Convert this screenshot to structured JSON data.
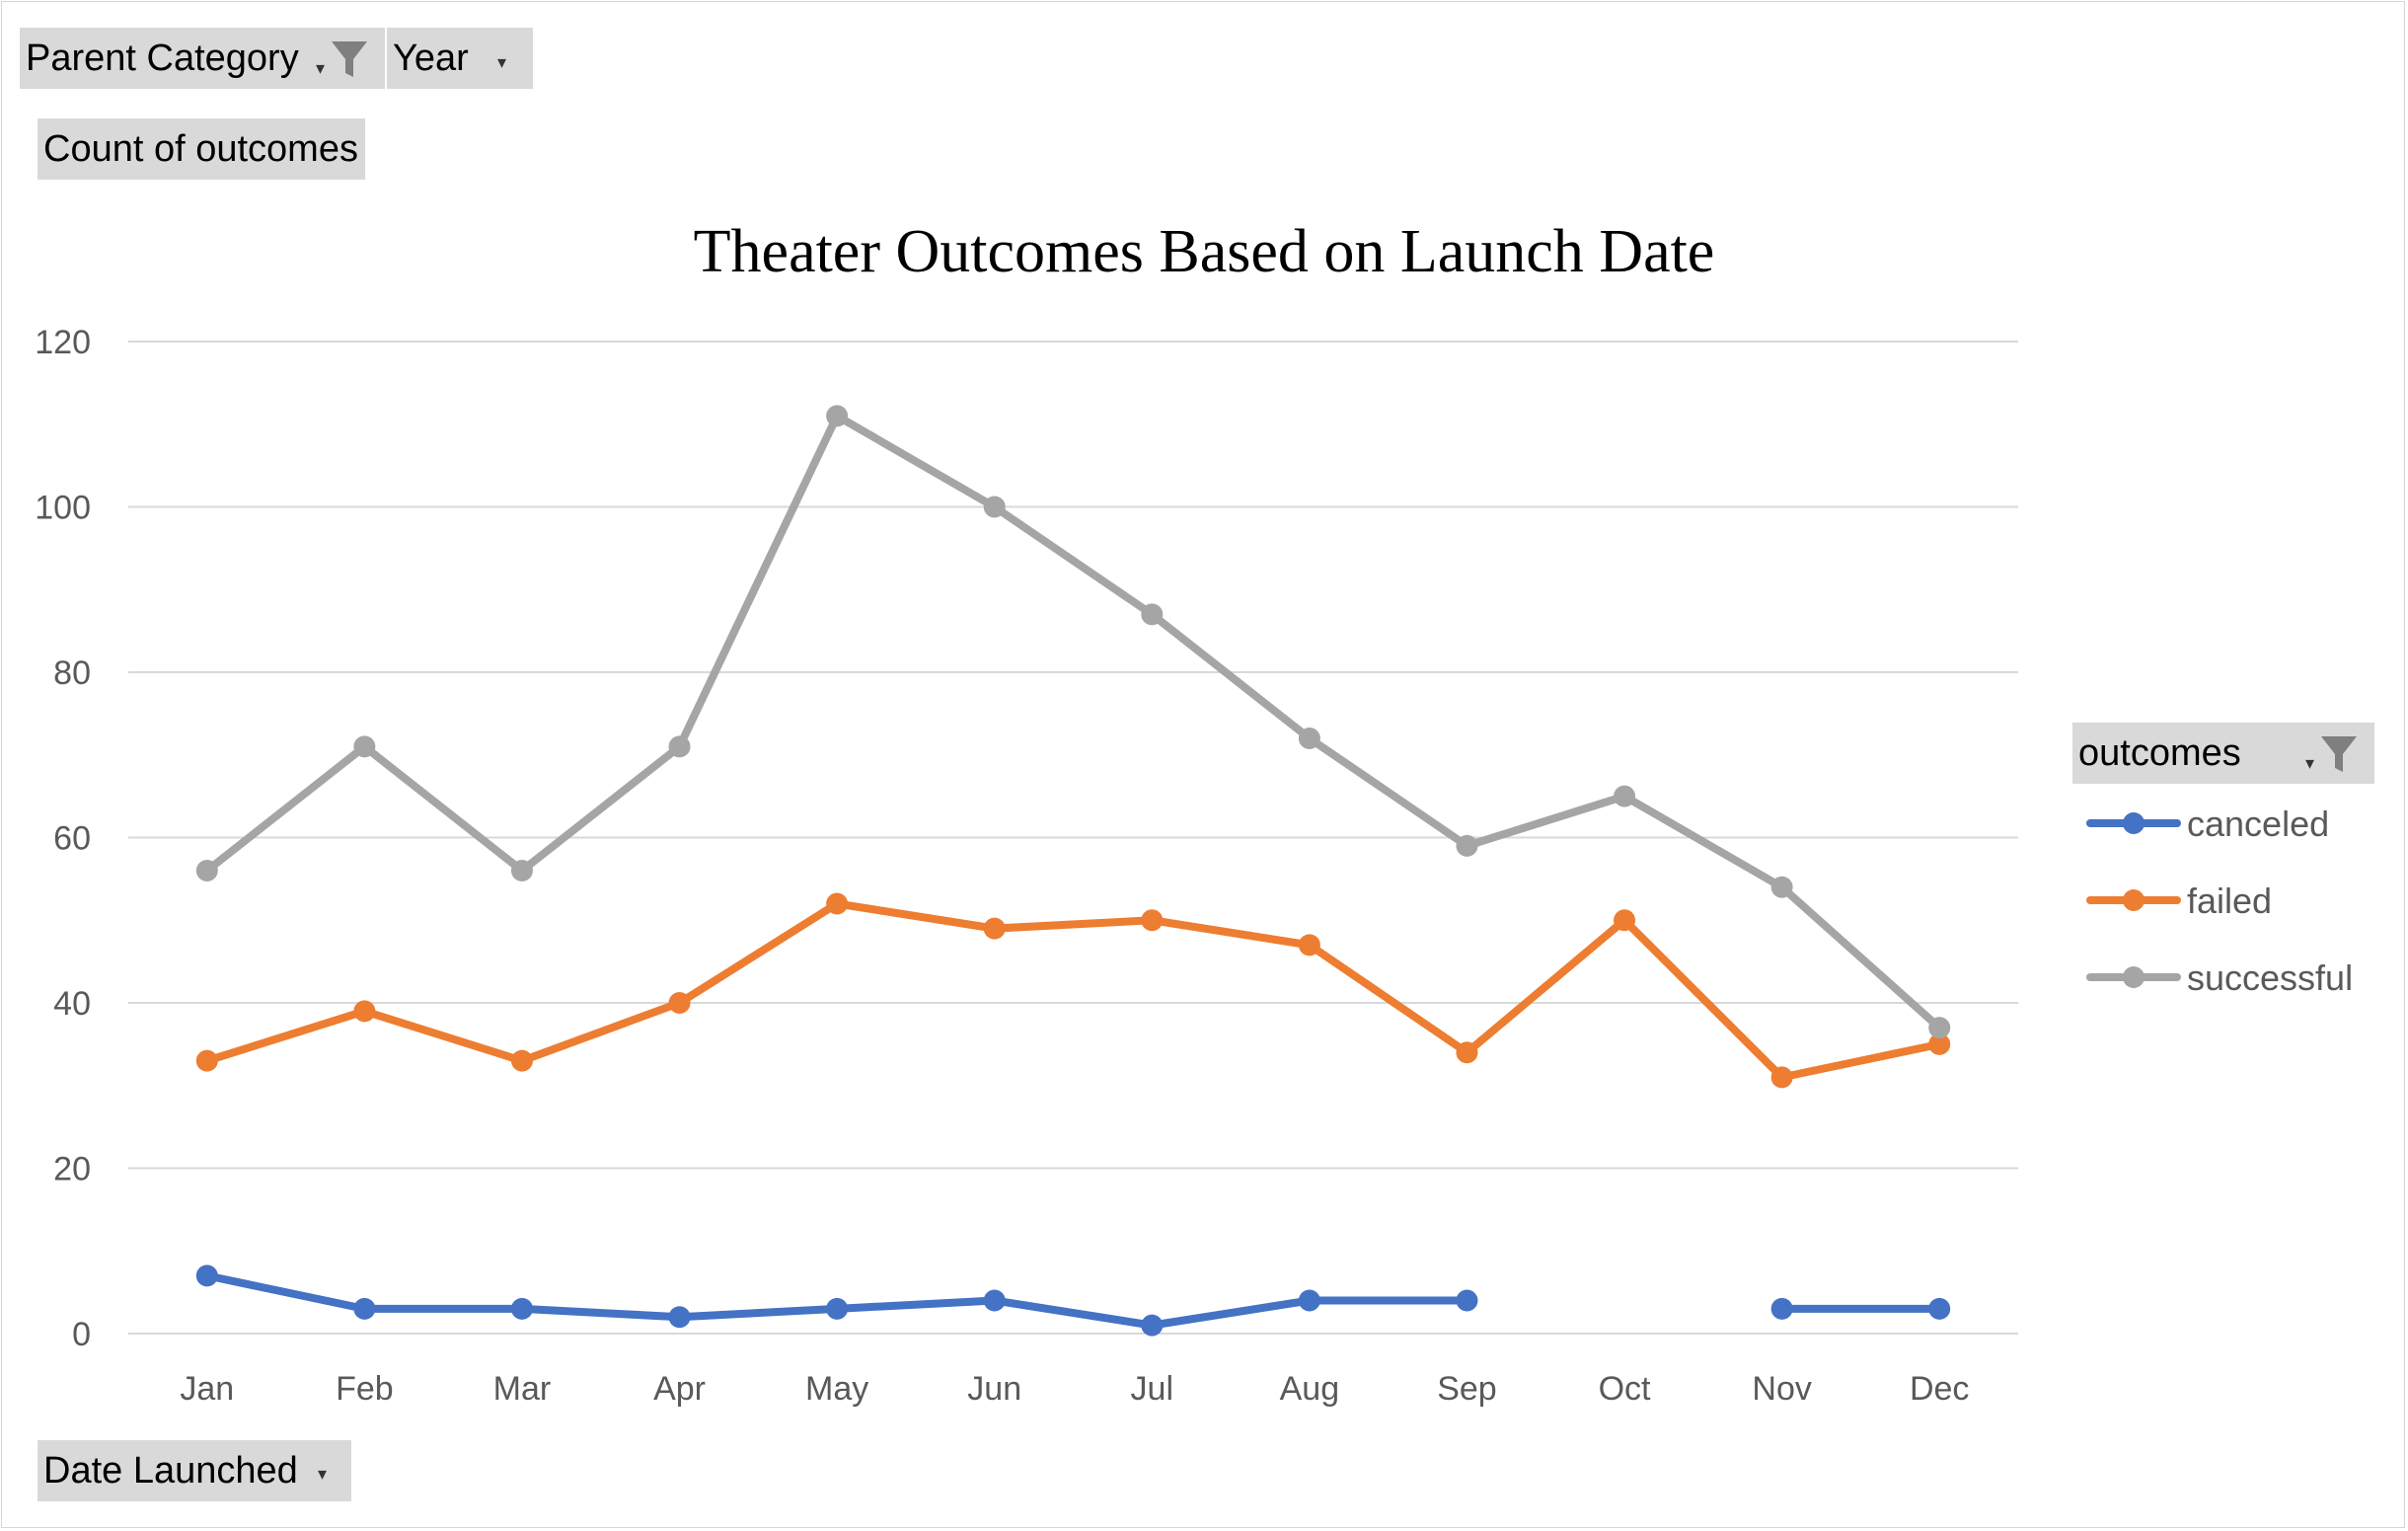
{
  "filters": {
    "parent_category_label": "Parent Category",
    "year_label": "Year"
  },
  "values_field": {
    "label": "Count of outcomes"
  },
  "axis_field": {
    "label": "Date Launched"
  },
  "legend": {
    "header": "outcomes",
    "placement": "right"
  },
  "icons": {
    "filter": "funnel-filter-icon",
    "dropdown": "dropdown-arrow-icon"
  },
  "colors": {
    "canceled": "#4472C4",
    "failed": "#ED7D31",
    "successful": "#A5A5A5",
    "gridline": "#d9d9d9",
    "button_bg": "#d9d9d9"
  },
  "chart_data": {
    "type": "line",
    "title": "Theater Outcomes Based on Launch Date",
    "xlabel": "",
    "ylabel": "",
    "categories": [
      "Jan",
      "Feb",
      "Mar",
      "Apr",
      "May",
      "Jun",
      "Jul",
      "Aug",
      "Sep",
      "Oct",
      "Nov",
      "Dec"
    ],
    "ylim": [
      0,
      120
    ],
    "yticks": [
      0,
      20,
      40,
      60,
      80,
      100,
      120
    ],
    "grid": true,
    "series": [
      {
        "name": "canceled",
        "color": "#4472C4",
        "values": [
          7,
          3,
          3,
          2,
          3,
          4,
          1,
          4,
          4,
          null,
          3,
          3
        ]
      },
      {
        "name": "failed",
        "color": "#ED7D31",
        "values": [
          33,
          39,
          33,
          40,
          52,
          49,
          50,
          47,
          34,
          50,
          31,
          35
        ]
      },
      {
        "name": "successful",
        "color": "#A5A5A5",
        "values": [
          56,
          71,
          56,
          71,
          111,
          100,
          87,
          72,
          59,
          65,
          54,
          37
        ]
      }
    ]
  }
}
